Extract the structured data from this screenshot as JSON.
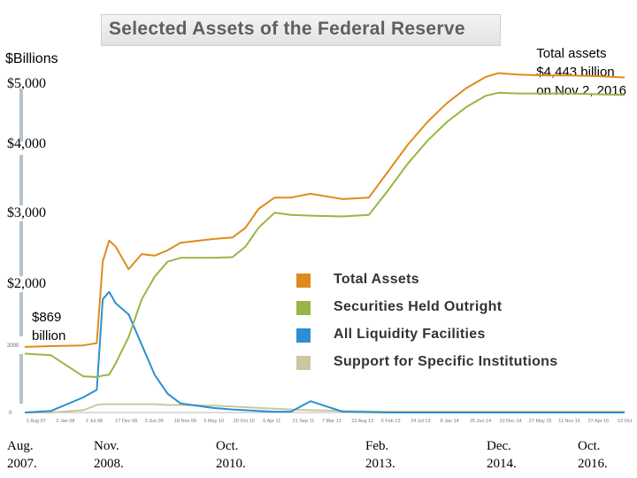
{
  "title": "Selected Assets of the Federal Reserve",
  "units_label": "$Billions",
  "y_tick_labels": [
    "$5,000",
    "$4,000",
    "$3,000",
    "$2,000"
  ],
  "inner_axis_labels": [
    "2000",
    "0"
  ],
  "annotations": {
    "total_line1": "Total assets",
    "total_line2": "$4,443 billion",
    "total_line3": "on Nov 2, 2016",
    "liq_line1": "$869",
    "liq_line2": "billion"
  },
  "x_labels": [
    {
      "top": "Aug.",
      "bottom": "2007."
    },
    {
      "top": "Nov.",
      "bottom": "2008."
    },
    {
      "top": "Oct.",
      "bottom": "2010."
    },
    {
      "top": "Feb.",
      "bottom": "2013."
    },
    {
      "top": "Dec.",
      "bottom": "2014."
    },
    {
      "top": "Oct.",
      "bottom": "2016."
    }
  ],
  "small_x_ticks": [
    "1 Aug 07",
    "2 Jan 08",
    "2 Jul 08",
    "17 Dec 08",
    "3 Jun 09",
    "18 Nov 09",
    "5 May 10",
    "20 Oct 10",
    "6 Apr 11",
    "21 Sep 11",
    "7 Mar 12",
    "22 Aug 12",
    "6 Feb 13",
    "24 Jul 13",
    "8 Jan 14",
    "25 Jun 14",
    "10 Dec 14",
    "27 May 15",
    "11 Nov 15",
    "27 Apr 16",
    "12 Oct"
  ],
  "chart_data": {
    "type": "line",
    "title": "Selected Assets of the Federal Reserve",
    "ylabel": "$Billions",
    "ylim": [
      0,
      5000
    ],
    "grid": false,
    "legend_position": "bottom-right",
    "x": [
      2007.6,
      2008.0,
      2008.5,
      2008.71,
      2008.8,
      2008.9,
      2009.0,
      2009.2,
      2009.4,
      2009.6,
      2009.8,
      2010.0,
      2010.5,
      2010.8,
      2011.0,
      2011.2,
      2011.45,
      2011.7,
      2012.0,
      2012.5,
      2012.9,
      2013.2,
      2013.5,
      2013.8,
      2014.1,
      2014.4,
      2014.7,
      2014.9,
      2015.2,
      2015.6,
      2016.0,
      2016.4,
      2016.84
    ],
    "series": [
      {
        "name": "Total Assets",
        "color": "#e08a1e",
        "values": [
          870,
          880,
          890,
          920,
          2000,
          2280,
          2200,
          1900,
          2100,
          2080,
          2150,
          2250,
          2300,
          2320,
          2450,
          2700,
          2850,
          2850,
          2900,
          2830,
          2850,
          3200,
          3550,
          3850,
          4100,
          4300,
          4450,
          4500,
          4480,
          4470,
          4470,
          4460,
          4443
        ]
      },
      {
        "name": "Securities Held Outright",
        "color": "#99b546",
        "values": [
          780,
          760,
          480,
          470,
          490,
          500,
          650,
          1000,
          1500,
          1800,
          2000,
          2050,
          2050,
          2060,
          2200,
          2450,
          2650,
          2620,
          2610,
          2600,
          2620,
          2950,
          3300,
          3600,
          3850,
          4050,
          4200,
          4240,
          4230,
          4230,
          4230,
          4220,
          4210
        ]
      },
      {
        "name": "All Liquidity Facilities",
        "color": "#2b8fd0",
        "values": [
          0,
          20,
          200,
          300,
          1500,
          1600,
          1450,
          1300,
          900,
          500,
          250,
          120,
          60,
          40,
          30,
          20,
          10,
          10,
          150,
          10,
          5,
          0,
          0,
          0,
          0,
          0,
          0,
          0,
          0,
          0,
          0,
          0,
          0
        ]
      },
      {
        "name": "Support for Specific Institutions",
        "color": "#c9c7a0",
        "values": [
          0,
          0,
          30,
          100,
          110,
          110,
          110,
          110,
          110,
          110,
          100,
          100,
          90,
          80,
          70,
          60,
          50,
          40,
          30,
          20,
          15,
          10,
          10,
          10,
          10,
          10,
          10,
          10,
          10,
          10,
          10,
          10,
          10
        ]
      }
    ]
  }
}
